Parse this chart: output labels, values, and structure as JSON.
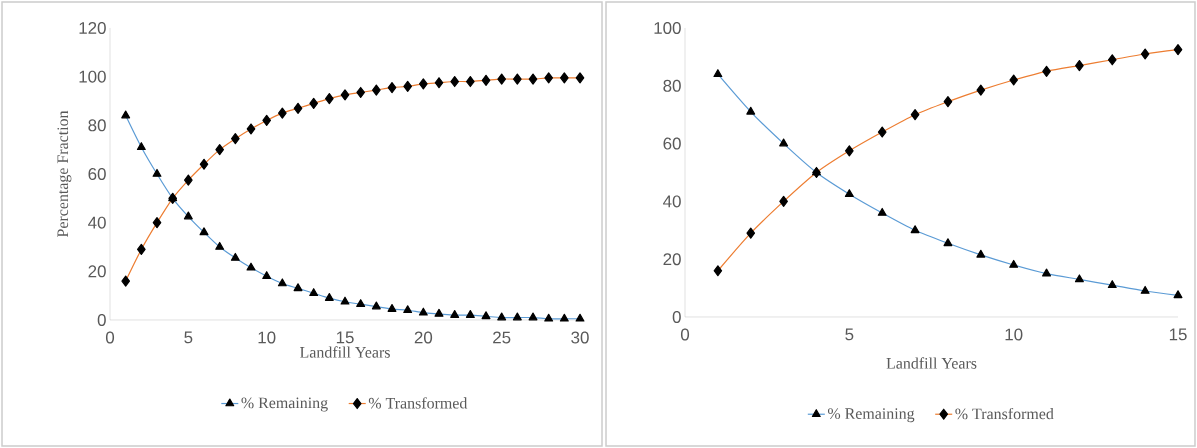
{
  "chart_data": [
    {
      "type": "line",
      "xlabel": "Landfill Years",
      "ylabel": "Percentage Fraction",
      "x": [
        1,
        2,
        3,
        4,
        5,
        6,
        7,
        8,
        9,
        10,
        11,
        12,
        13,
        14,
        15,
        16,
        17,
        18,
        19,
        20,
        21,
        22,
        23,
        24,
        25,
        26,
        27,
        28,
        29,
        30
      ],
      "xlim": [
        0,
        30
      ],
      "xticks": [
        0,
        5,
        10,
        15,
        20,
        25,
        30
      ],
      "ylim": [
        0,
        120
      ],
      "yticks": [
        0,
        20,
        40,
        60,
        80,
        100,
        120
      ],
      "legend": "bottom",
      "grid": false,
      "series": [
        {
          "name": "% Remaining",
          "color": "#5b9bd5",
          "marker": "triangle",
          "values": [
            84,
            71,
            60,
            50,
            42.5,
            36,
            30,
            25.5,
            21.5,
            18,
            15,
            13,
            11,
            9,
            7.5,
            6.5,
            5.5,
            4.5,
            4,
            3,
            2.5,
            2,
            2,
            1.5,
            1,
            1,
            1,
            0.5,
            0.5,
            0.5
          ]
        },
        {
          "name": "% Transformed",
          "color": "#ed7d31",
          "marker": "diamond",
          "values": [
            16,
            29,
            40,
            50,
            57.5,
            64,
            70,
            74.5,
            78.5,
            82,
            85,
            87,
            89,
            91,
            92.5,
            93.5,
            94.5,
            95.5,
            96,
            97,
            97.5,
            98,
            98,
            98.5,
            99,
            99,
            99,
            99.5,
            99.5,
            99.5
          ]
        }
      ]
    },
    {
      "type": "line",
      "xlabel": "Landfill Years",
      "x": [
        1,
        2,
        3,
        4,
        5,
        6,
        7,
        8,
        9,
        10,
        11,
        12,
        13,
        14,
        15
      ],
      "xlim": [
        0,
        15
      ],
      "xticks": [
        0,
        5,
        10,
        15
      ],
      "ylim": [
        0,
        100
      ],
      "yticks": [
        0,
        20,
        40,
        60,
        80,
        100
      ],
      "legend": "bottom",
      "grid": false,
      "series": [
        {
          "name": "% Remaining",
          "color": "#5b9bd5",
          "marker": "triangle",
          "values": [
            84,
            71,
            60,
            50,
            42.5,
            36,
            30,
            25.5,
            21.5,
            18,
            15,
            13,
            11,
            9,
            7.5
          ]
        },
        {
          "name": "% Transformed",
          "color": "#ed7d31",
          "marker": "diamond",
          "values": [
            16,
            29,
            40,
            50,
            57.5,
            64,
            70,
            74.5,
            78.5,
            82,
            85,
            87,
            89,
            91,
            92.5
          ]
        }
      ]
    }
  ]
}
